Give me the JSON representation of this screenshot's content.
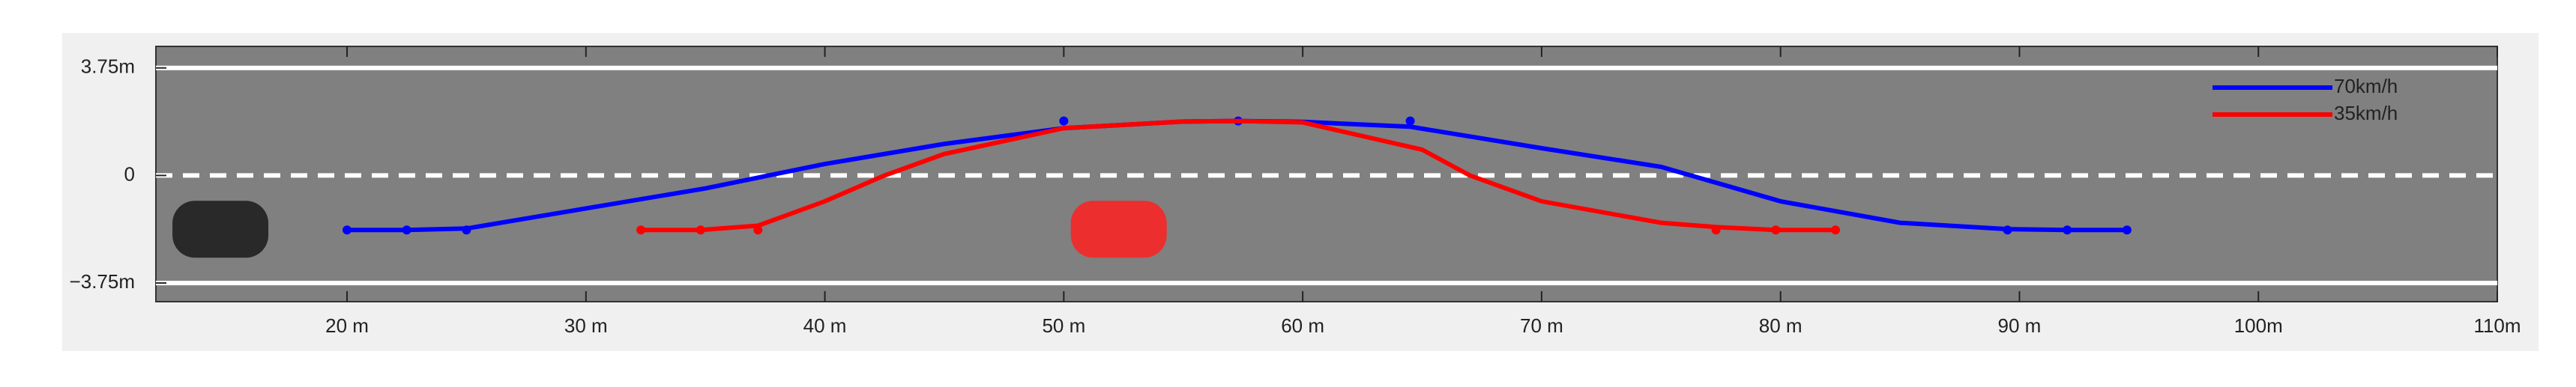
{
  "chart_data": {
    "type": "line",
    "xlim": [
      12,
      110
    ],
    "xticks": [
      {
        "value": 20,
        "label": "20 m"
      },
      {
        "value": 30,
        "label": "30 m"
      },
      {
        "value": 40,
        "label": "40 m"
      },
      {
        "value": 50,
        "label": "50 m"
      },
      {
        "value": 60,
        "label": "60 m"
      },
      {
        "value": 70,
        "label": "70 m"
      },
      {
        "value": 80,
        "label": "80 m"
      },
      {
        "value": 90,
        "label": "90 m"
      },
      {
        "value": 100,
        "label": "100m"
      },
      {
        "value": 110,
        "label": "110m"
      }
    ],
    "ylim": [
      -4.4,
      4.5
    ],
    "yticks": [
      {
        "value": -3.75,
        "label": "−3.75m"
      },
      0,
      {
        "value": 3.75,
        "label": "3.75m"
      }
    ],
    "legend": "top-right",
    "series": [
      {
        "name": "70km/h",
        "color": "#0000ff",
        "x": [
          20,
          22.5,
          25,
          30,
          35,
          40,
          45,
          50,
          55,
          57.3,
          60,
          64.5,
          70,
          75,
          80,
          85,
          89.5,
          92,
          94.5
        ],
        "values": [
          -1.9,
          -1.9,
          -1.85,
          -1.15,
          -0.45,
          0.4,
          1.1,
          1.65,
          1.88,
          1.9,
          1.87,
          1.7,
          0.95,
          0.3,
          -0.9,
          -1.65,
          -1.87,
          -1.9,
          -1.9
        ],
        "waypoints_x": [
          20,
          22.5,
          25,
          50,
          57.3,
          64.5,
          89.5,
          92,
          94.5
        ],
        "waypoints_y": [
          -1.9,
          -1.9,
          -1.9,
          1.9,
          1.9,
          1.9,
          -1.9,
          -1.9,
          -1.9
        ]
      },
      {
        "name": "35km/h",
        "color": "#ff0000",
        "x": [
          32.3,
          34.8,
          37.2,
          40,
          42.5,
          45,
          50,
          55,
          57.3,
          60,
          65,
          67,
          70,
          75,
          77.3,
          79.8,
          82.3
        ],
        "values": [
          -1.9,
          -1.9,
          -1.75,
          -0.9,
          0,
          0.75,
          1.65,
          1.88,
          1.9,
          1.85,
          0.9,
          0,
          -0.9,
          -1.65,
          -1.8,
          -1.9,
          -1.9
        ],
        "waypoints_x": [
          32.3,
          34.8,
          37.2,
          77.3,
          79.8,
          82.3
        ],
        "waypoints_y": [
          -1.9,
          -1.9,
          -1.9,
          -1.9,
          -1.9,
          -1.9
        ]
      }
    ],
    "vehicles": [
      {
        "x": 14.7,
        "y": -1.875,
        "color": "#1a1a1a"
      },
      {
        "x": 52.3,
        "y": -1.875,
        "color": "#ff2020"
      }
    ]
  }
}
